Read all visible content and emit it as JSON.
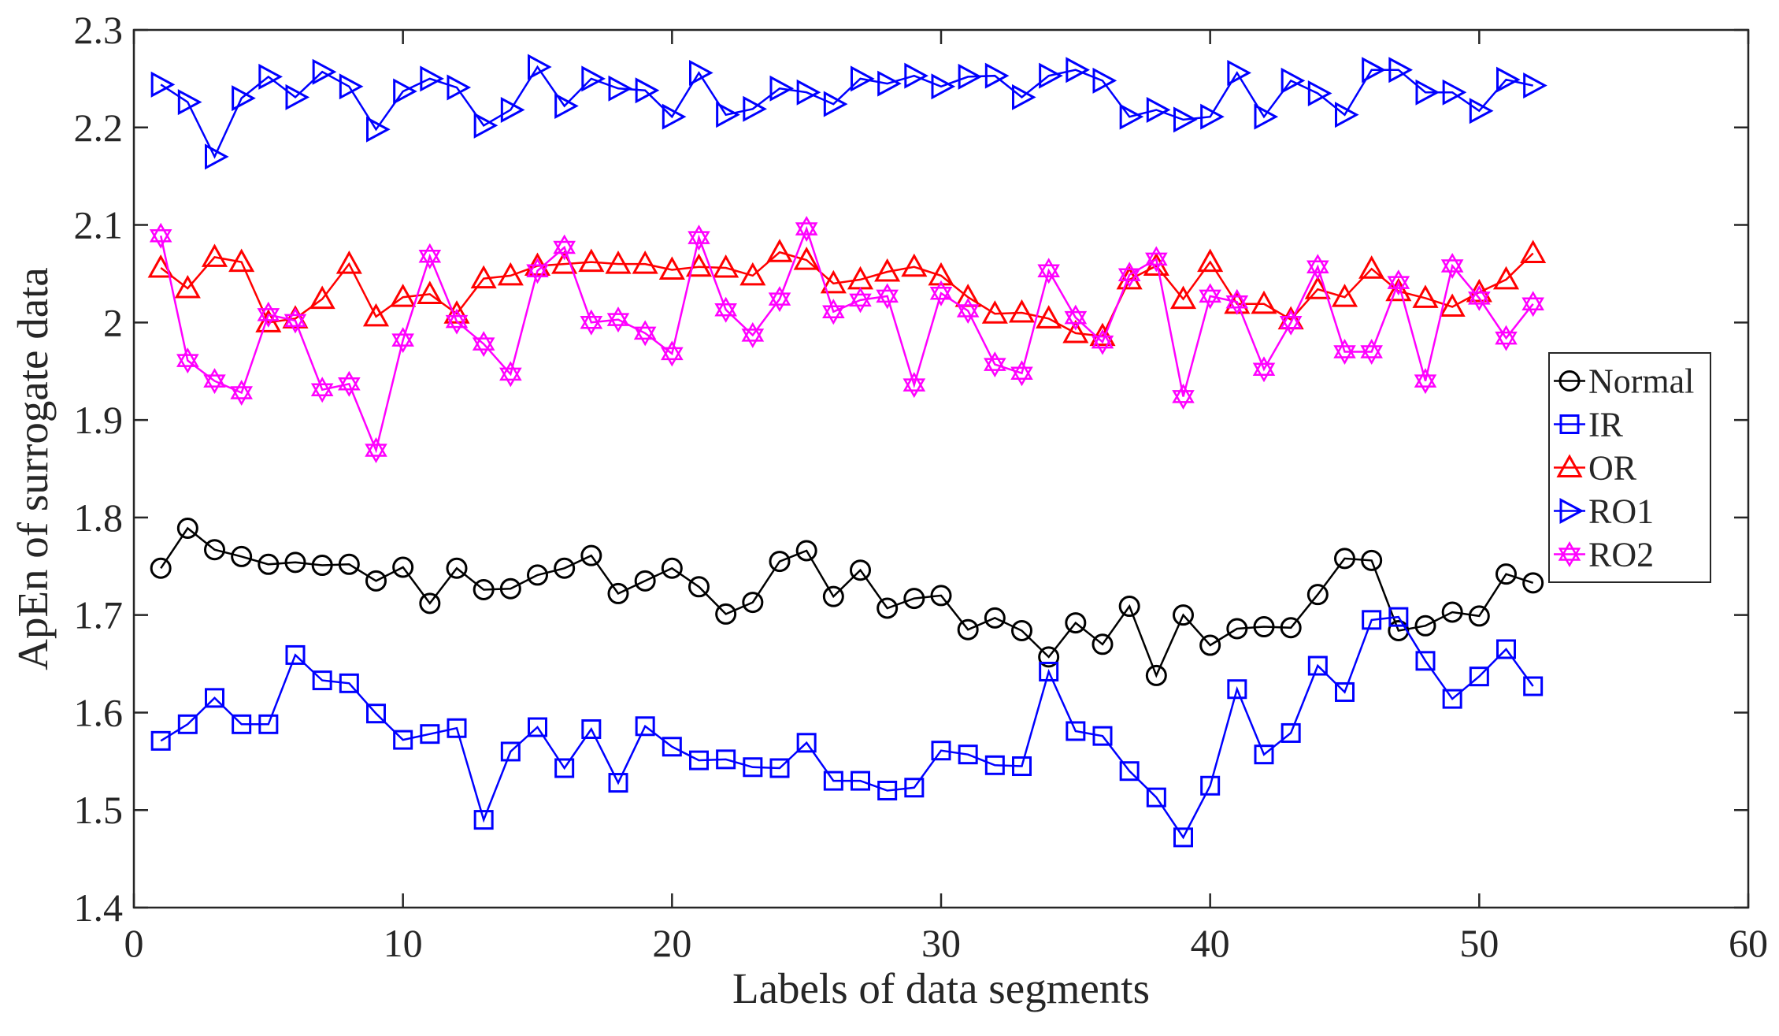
{
  "chart_data": {
    "type": "line",
    "title": "",
    "xlabel": "Labels of data segments",
    "ylabel": "ApEn of surrogate data",
    "xlim": [
      0,
      60
    ],
    "ylim": [
      1.4,
      2.3
    ],
    "xticks": [
      "0",
      "10",
      "20",
      "30",
      "40",
      "50",
      "60"
    ],
    "yticks": [
      "1.4",
      "1.5",
      "1.6",
      "1.7",
      "1.8",
      "1.9",
      "2",
      "2.1",
      "2.2",
      "2.3"
    ],
    "legend_position": "right",
    "x": [
      1,
      2,
      3,
      4,
      5,
      6,
      7,
      8,
      9,
      10,
      11,
      12,
      13,
      14,
      15,
      16,
      17,
      18,
      19,
      20,
      21,
      22,
      23,
      24,
      25,
      26,
      27,
      28,
      29,
      30,
      31,
      32,
      33,
      34,
      35,
      36,
      37,
      38,
      39,
      40,
      41,
      42,
      43,
      44,
      45,
      46,
      47,
      48,
      49,
      50,
      51,
      52
    ],
    "series": [
      {
        "name": "Normal",
        "color": "#000000",
        "marker": "circle",
        "values": [
          1.748,
          1.789,
          1.767,
          1.76,
          1.752,
          1.754,
          1.751,
          1.752,
          1.735,
          1.749,
          1.712,
          1.748,
          1.726,
          1.727,
          1.741,
          1.748,
          1.761,
          1.722,
          1.735,
          1.748,
          1.729,
          1.701,
          1.713,
          1.755,
          1.766,
          1.719,
          1.746,
          1.707,
          1.717,
          1.72,
          1.685,
          1.697,
          1.684,
          1.657,
          1.692,
          1.67,
          1.709,
          1.638,
          1.7,
          1.669,
          1.686,
          1.688,
          1.687,
          1.721,
          1.758,
          1.756,
          1.684,
          1.689,
          1.703,
          1.699,
          1.742,
          1.733
        ]
      },
      {
        "name": "IR",
        "color": "#0000ff",
        "marker": "square",
        "values": [
          1.571,
          1.588,
          1.615,
          1.588,
          1.588,
          1.659,
          1.633,
          1.63,
          1.599,
          1.572,
          1.578,
          1.584,
          1.49,
          1.56,
          1.585,
          1.543,
          1.583,
          1.528,
          1.586,
          1.565,
          1.551,
          1.552,
          1.544,
          1.543,
          1.569,
          1.53,
          1.53,
          1.52,
          1.523,
          1.561,
          1.557,
          1.546,
          1.545,
          1.642,
          1.581,
          1.576,
          1.54,
          1.513,
          1.472,
          1.525,
          1.624,
          1.557,
          1.579,
          1.648,
          1.621,
          1.695,
          1.698,
          1.653,
          1.614,
          1.637,
          1.665,
          1.627
        ]
      },
      {
        "name": "OR",
        "color": "#ff0000",
        "marker": "triangle-up",
        "values": [
          2.056,
          2.035,
          2.067,
          2.062,
          2.0,
          2.004,
          2.024,
          2.06,
          2.006,
          2.026,
          2.029,
          2.009,
          2.045,
          2.048,
          2.058,
          2.06,
          2.062,
          2.06,
          2.06,
          2.054,
          2.057,
          2.056,
          2.048,
          2.072,
          2.064,
          2.04,
          2.044,
          2.052,
          2.057,
          2.048,
          2.026,
          2.009,
          2.01,
          2.004,
          1.989,
          1.986,
          2.044,
          2.058,
          2.024,
          2.062,
          2.019,
          2.019,
          2.003,
          2.034,
          2.026,
          2.055,
          2.032,
          2.025,
          2.016,
          2.031,
          2.044,
          2.071
        ]
      },
      {
        "name": "RO1",
        "color": "#0000ff",
        "marker": "triangle-right",
        "values": [
          2.244,
          2.226,
          2.17,
          2.23,
          2.252,
          2.231,
          2.257,
          2.242,
          2.198,
          2.237,
          2.25,
          2.241,
          2.202,
          2.218,
          2.262,
          2.222,
          2.25,
          2.24,
          2.238,
          2.211,
          2.256,
          2.213,
          2.219,
          2.24,
          2.236,
          2.224,
          2.25,
          2.245,
          2.253,
          2.242,
          2.252,
          2.253,
          2.231,
          2.253,
          2.259,
          2.248,
          2.211,
          2.218,
          2.208,
          2.211,
          2.256,
          2.211,
          2.248,
          2.235,
          2.213,
          2.259,
          2.259,
          2.236,
          2.236,
          2.217,
          2.249,
          2.243
        ]
      },
      {
        "name": "RO2",
        "color": "#ff00ff",
        "marker": "hexagram",
        "values": [
          2.089,
          1.961,
          1.94,
          1.928,
          2.008,
          2.002,
          1.931,
          1.937,
          1.869,
          1.982,
          2.068,
          2.001,
          1.978,
          1.947,
          2.053,
          2.077,
          2.0,
          2.003,
          1.989,
          1.968,
          2.087,
          2.013,
          1.987,
          2.024,
          2.096,
          2.011,
          2.023,
          2.027,
          1.936,
          2.03,
          2.012,
          1.957,
          1.948,
          2.053,
          2.005,
          1.98,
          2.049,
          2.065,
          1.924,
          2.027,
          2.021,
          1.952,
          2.0,
          2.057,
          1.97,
          1.97,
          2.041,
          1.94,
          2.058,
          2.025,
          1.984,
          2.019
        ]
      }
    ]
  }
}
